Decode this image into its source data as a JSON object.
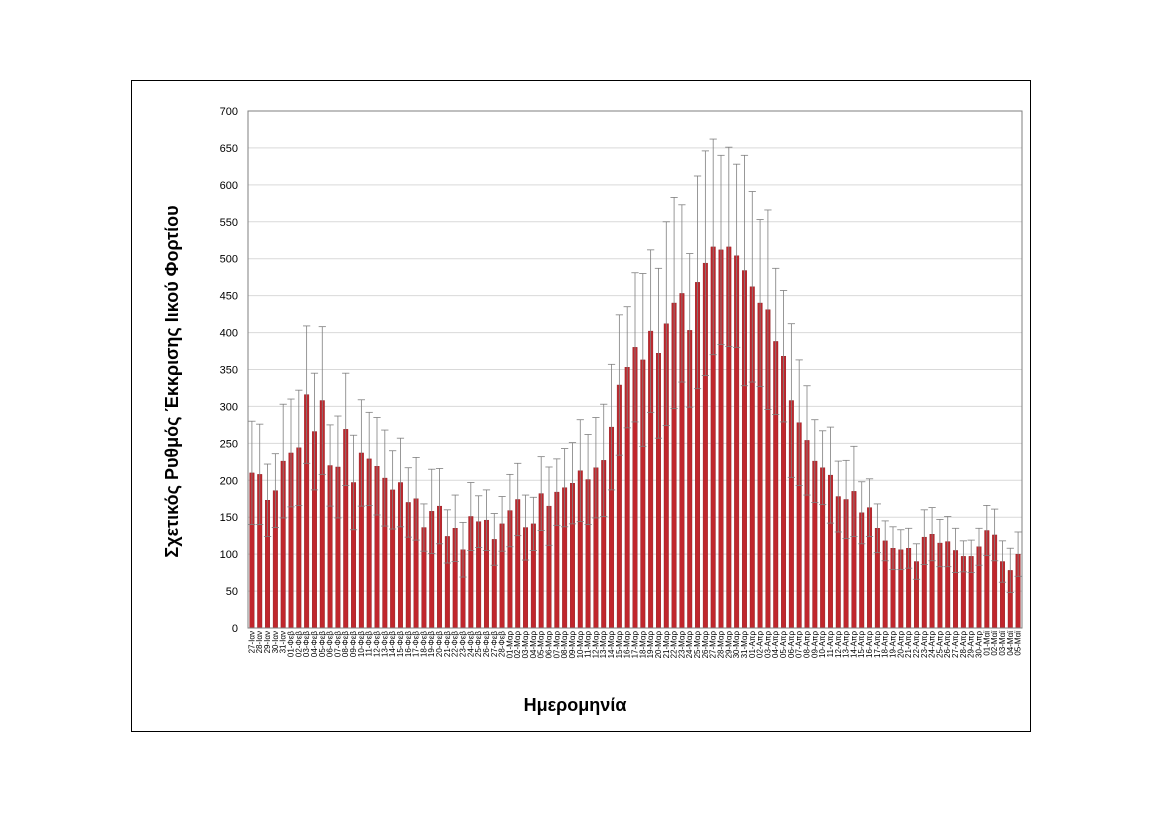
{
  "chart_data": {
    "type": "bar",
    "xlabel": "Ημερομηνία",
    "ylabel": "Σχετικός Ρυθμός Έκκρισης Ιικού Φορτίου",
    "ylim": [
      0,
      700
    ],
    "yticks": [
      0,
      50,
      100,
      150,
      200,
      250,
      300,
      350,
      400,
      450,
      500,
      550,
      600,
      650,
      700
    ],
    "grid": true,
    "legend": "none",
    "colors": {
      "bar": "#c0272d",
      "bar_stroke": "#8b1a1e",
      "error_bar": "#7f7f7f"
    },
    "categories": [
      "27-Ιαν",
      "28-Ιαν",
      "29-Ιαν",
      "30-Ιαν",
      "31-Ιαν",
      "01-Φεβ",
      "02-Φεβ",
      "03-Φεβ",
      "04-Φεβ",
      "05-Φεβ",
      "06-Φεβ",
      "07-Φεβ",
      "08-Φεβ",
      "09-Φεβ",
      "10-Φεβ",
      "11-Φεβ",
      "12-Φεβ",
      "13-Φεβ",
      "14-Φεβ",
      "15-Φεβ",
      "16-Φεβ",
      "17-Φεβ",
      "18-Φεβ",
      "19-Φεβ",
      "20-Φεβ",
      "21-Φεβ",
      "22-Φεβ",
      "23-Φεβ",
      "24-Φεβ",
      "25-Φεβ",
      "26-Φεβ",
      "27-Φεβ",
      "28-Φεβ",
      "01-Μαρ",
      "02-Μαρ",
      "03-Μαρ",
      "04-Μαρ",
      "05-Μαρ",
      "06-Μαρ",
      "07-Μαρ",
      "08-Μαρ",
      "09-Μαρ",
      "10-Μαρ",
      "11-Μαρ",
      "12-Μαρ",
      "13-Μαρ",
      "14-Μαρ",
      "15-Μαρ",
      "16-Μαρ",
      "17-Μαρ",
      "18-Μαρ",
      "19-Μαρ",
      "20-Μαρ",
      "21-Μαρ",
      "22-Μαρ",
      "23-Μαρ",
      "24-Μαρ",
      "25-Μαρ",
      "26-Μαρ",
      "27-Μαρ",
      "28-Μαρ",
      "29-Μαρ",
      "30-Μαρ",
      "31-Μαρ",
      "01-Απρ",
      "02-Απρ",
      "03-Απρ",
      "04-Απρ",
      "05-Απρ",
      "06-Απρ",
      "07-Απρ",
      "08-Απρ",
      "09-Απρ",
      "10-Απρ",
      "11-Απρ",
      "12-Απρ",
      "13-Απρ",
      "14-Απρ",
      "15-Απρ",
      "16-Απρ",
      "17-Απρ",
      "18-Απρ",
      "19-Απρ",
      "20-Απρ",
      "21-Απρ",
      "22-Απρ",
      "23-Απρ",
      "24-Απρ",
      "25-Απρ",
      "26-Απρ",
      "27-Απρ",
      "28-Απρ",
      "29-Απρ",
      "30-Απρ",
      "01-Μαϊ",
      "02-Μαϊ",
      "03-Μαϊ",
      "04-Μαϊ",
      "05-Μαϊ"
    ],
    "values": [
      210,
      208,
      173,
      186,
      226,
      237,
      244,
      316,
      266,
      308,
      220,
      218,
      269,
      197,
      237,
      229,
      219,
      203,
      187,
      197,
      170,
      175,
      136,
      158,
      165,
      124,
      135,
      106,
      151,
      144,
      146,
      120,
      141,
      159,
      174,
      136,
      141,
      182,
      165,
      184,
      190,
      196,
      213,
      201,
      217,
      227,
      272,
      329,
      353,
      380,
      363,
      402,
      372,
      412,
      440,
      453,
      403,
      468,
      494,
      516,
      512,
      516,
      504,
      484,
      462,
      440,
      431,
      388,
      368,
      308,
      278,
      254,
      226,
      217,
      207,
      178,
      174,
      185,
      156,
      163,
      135,
      118,
      108,
      106,
      108,
      90,
      123,
      127,
      115,
      117,
      105,
      97,
      97,
      110,
      132,
      126,
      90,
      78,
      100
    ],
    "error_upper": [
      280,
      276,
      222,
      236,
      303,
      310,
      322,
      409,
      345,
      408,
      275,
      287,
      345,
      261,
      309,
      292,
      285,
      268,
      240,
      257,
      217,
      231,
      168,
      215,
      216,
      160,
      180,
      143,
      197,
      179,
      187,
      155,
      178,
      208,
      223,
      180,
      177,
      232,
      218,
      229,
      243,
      251,
      282,
      262,
      285,
      303,
      357,
      424,
      435,
      481,
      480,
      512,
      487,
      550,
      583,
      573,
      507,
      612,
      646,
      662,
      640,
      651,
      628,
      640,
      591,
      553,
      566,
      487,
      457,
      412,
      363,
      328,
      282,
      267,
      272,
      226,
      227,
      246,
      198,
      202,
      168,
      145,
      137,
      133,
      135,
      114,
      160,
      163,
      147,
      151,
      135,
      118,
      119,
      135,
      166,
      161,
      118,
      108,
      130
    ],
    "error_lower": [
      140,
      140,
      124,
      136,
      149,
      164,
      166,
      223,
      187,
      208,
      165,
      149,
      193,
      133,
      165,
      166,
      153,
      138,
      134,
      137,
      123,
      119,
      104,
      101,
      114,
      88,
      90,
      69,
      105,
      109,
      105,
      85,
      104,
      110,
      125,
      92,
      105,
      132,
      112,
      139,
      137,
      141,
      144,
      140,
      149,
      151,
      187,
      234,
      271,
      279,
      246,
      292,
      257,
      274,
      297,
      333,
      299,
      324,
      342,
      370,
      384,
      381,
      380,
      328,
      333,
      327,
      296,
      289,
      279,
      204,
      193,
      180,
      170,
      167,
      142,
      130,
      121,
      124,
      114,
      124,
      102,
      91,
      79,
      79,
      81,
      66,
      86,
      91,
      83,
      83,
      75,
      76,
      75,
      85,
      98,
      91,
      62,
      48,
      70
    ]
  }
}
